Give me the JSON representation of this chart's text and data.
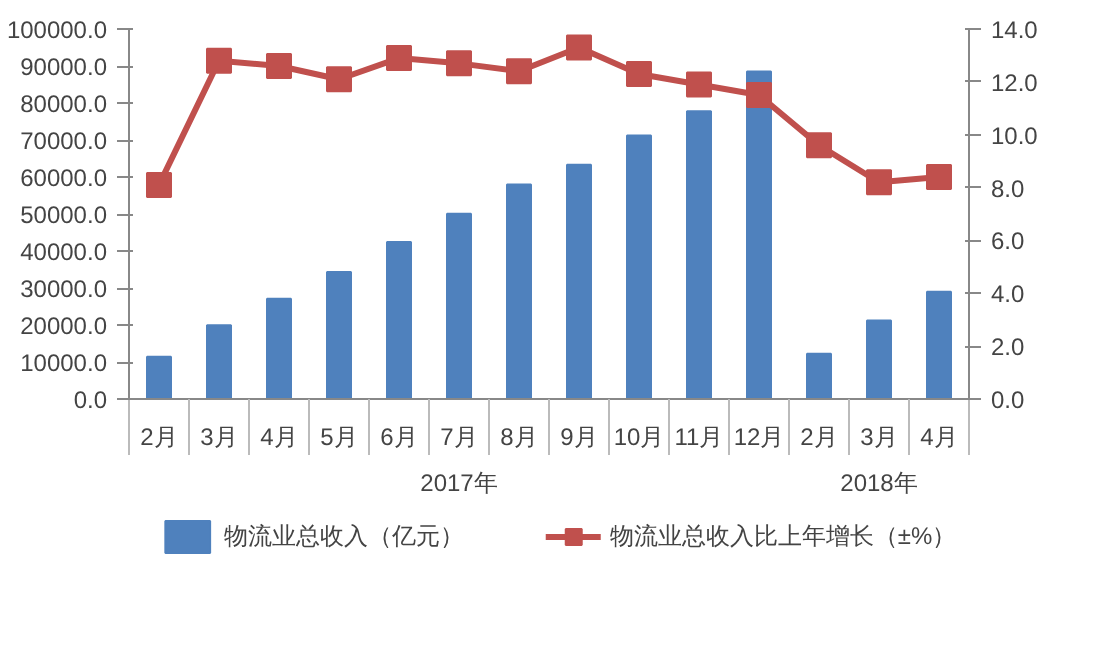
{
  "chart_data": {
    "type": "bar",
    "categories": [
      "2月",
      "3月",
      "4月",
      "5月",
      "6月",
      "7月",
      "8月",
      "9月",
      "10月",
      "11月",
      "12月",
      "2月",
      "3月",
      "4月"
    ],
    "series": [
      {
        "name": "物流业总收入（亿元）",
        "color": "#4f81bd",
        "values": [
          11400,
          19900,
          27100,
          34300,
          42400,
          50100,
          58000,
          63300,
          71200,
          77800,
          88500,
          12200,
          21200,
          29000
        ]
      },
      {
        "name": "物流业总收入比上年增长（±%）",
        "type": "line",
        "axis": "y2",
        "color": "#c0504d",
        "marker": "square",
        "values": [
          8.1,
          12.8,
          12.6,
          12.1,
          12.9,
          12.7,
          12.4,
          13.3,
          12.3,
          11.9,
          11.5,
          9.6,
          8.2,
          8.4
        ]
      }
    ],
    "ylim": [
      0,
      100000
    ],
    "yticks": [
      {
        "value": 0,
        "label": "0.0"
      },
      {
        "value": 10000,
        "label": "10000.0"
      },
      {
        "value": 20000,
        "label": "20000.0"
      },
      {
        "value": 30000,
        "label": "30000.0"
      },
      {
        "value": 40000,
        "label": "40000.0"
      },
      {
        "value": 50000,
        "label": "50000.0"
      },
      {
        "value": 60000,
        "label": "60000.0"
      },
      {
        "value": 70000,
        "label": "70000.0"
      },
      {
        "value": 80000,
        "label": "80000.0"
      },
      {
        "value": 90000,
        "label": "90000.0"
      },
      {
        "value": 100000,
        "label": "100000.0"
      }
    ],
    "y2lim": [
      0,
      14
    ],
    "y2ticks": [
      {
        "value": 0,
        "label": "0.0"
      },
      {
        "value": 2,
        "label": "2.0"
      },
      {
        "value": 4,
        "label": "4.0"
      },
      {
        "value": 6,
        "label": "6.0"
      },
      {
        "value": 8,
        "label": "8.0"
      },
      {
        "value": 10,
        "label": "10.0"
      },
      {
        "value": 12,
        "label": "12.0"
      },
      {
        "value": 14,
        "label": "14.0"
      }
    ],
    "annotations": [
      "2017年",
      "2018年"
    ],
    "legend": "bottom",
    "grid": false
  }
}
